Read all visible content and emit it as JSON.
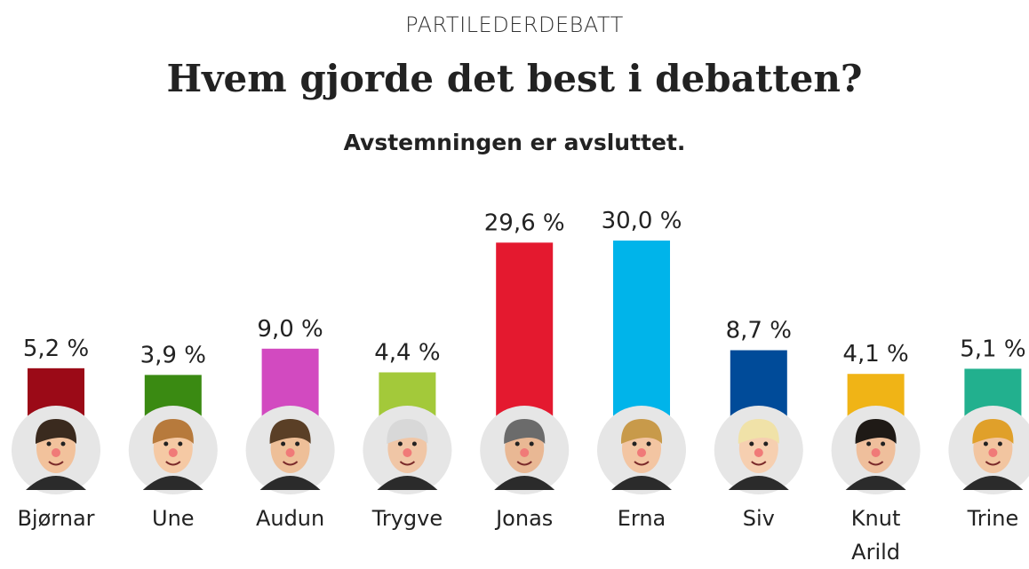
{
  "chart_data": {
    "type": "bar",
    "kicker": "PARTILEDERDEBATT",
    "title": "Hvem gjorde det best i debatten?",
    "subtitle": "Avstemningen er avsluttet.",
    "categories": [
      "Bjørnar",
      "Une",
      "Audun",
      "Trygve",
      "Jonas",
      "Erna",
      "Siv",
      "Knut Arild",
      "Trine"
    ],
    "values": [
      5.2,
      3.9,
      9.0,
      4.4,
      29.6,
      30.0,
      8.7,
      4.1,
      5.1
    ],
    "value_labels": [
      "5,2 %",
      "3,9 %",
      "9,0 %",
      "4,4 %",
      "29,6 %",
      "30,0 %",
      "8,7 %",
      "4,1 %",
      "5,1 %"
    ],
    "colors": [
      "#9b0a17",
      "#3a8a12",
      "#d24ac0",
      "#a3c93a",
      "#e4192f",
      "#00b4ea",
      "#004b99",
      "#f0b416",
      "#22b08e"
    ]
  }
}
